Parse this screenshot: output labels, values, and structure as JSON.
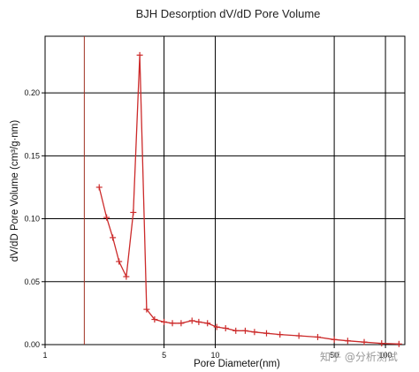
{
  "chart_data": {
    "type": "line",
    "title": "BJH Desorption dV/dD Pore Volume",
    "xlabel": "Pore Diameter(nm)",
    "ylabel": "dV/dD Pore Volume (cm³/g·nm)",
    "x_scale": "log",
    "xlim": [
      1,
      130
    ],
    "ylim": [
      0,
      0.245
    ],
    "x_ticks": [
      {
        "value": 1,
        "label": "1"
      },
      {
        "value": 5,
        "label": "5"
      },
      {
        "value": 10,
        "label": "10"
      },
      {
        "value": 50,
        "label": "50"
      },
      {
        "value": 100,
        "label": "100"
      }
    ],
    "x_grid": [
      1,
      5,
      10,
      50,
      100
    ],
    "y_ticks": [
      {
        "value": 0.0,
        "label": "0.00"
      },
      {
        "value": 0.05,
        "label": "0.05"
      },
      {
        "value": 0.1,
        "label": "0.10"
      },
      {
        "value": 0.15,
        "label": "0.15"
      },
      {
        "value": 0.2,
        "label": "0.20"
      }
    ],
    "grid": true,
    "reference_line_x": 1.7,
    "series_color": "#cc2a2a",
    "series": [
      {
        "name": "",
        "x": [
          2.08,
          2.3,
          2.5,
          2.72,
          3.0,
          3.3,
          3.6,
          3.95,
          4.4,
          5.0,
          5.6,
          6.3,
          7.3,
          8.0,
          9.0,
          10.2,
          11.5,
          13.2,
          15.0,
          17.0,
          20.0,
          24.0,
          31.0,
          40.0,
          50.0,
          60.0,
          75.0,
          95.0,
          120.0
        ],
        "y": [
          0.125,
          0.101,
          0.085,
          0.066,
          0.054,
          0.105,
          0.23,
          0.028,
          0.02,
          0.018,
          0.017,
          0.017,
          0.019,
          0.018,
          0.017,
          0.014,
          0.013,
          0.011,
          0.011,
          0.01,
          0.009,
          0.008,
          0.007,
          0.006,
          0.004,
          0.003,
          0.002,
          0.001,
          0.0005
        ]
      }
    ]
  },
  "watermark": "知乎 @分析测试"
}
